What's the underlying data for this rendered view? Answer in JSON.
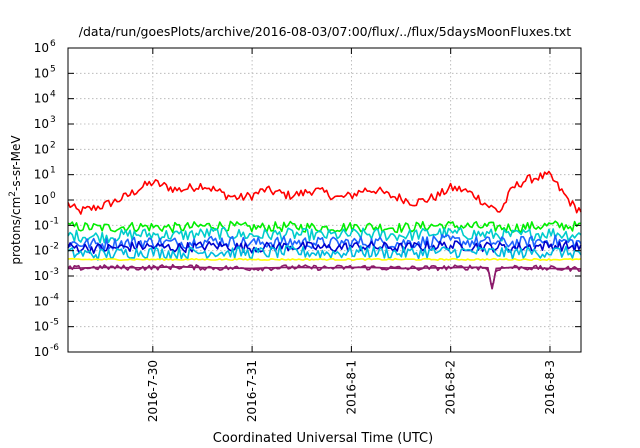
{
  "chart_data": {
    "type": "line",
    "title": "/data/run/goesPlots/archive/2016-08-03/07:00/flux/../flux/5daysMoonFluxes.txt",
    "xlabel": "Coordinated Universal Time (UTC)",
    "ylabel": {
      "base": "protons/cm",
      "sup": "2",
      "rest": "-s-sr-MeV"
    },
    "y_scale": "log",
    "ylim": [
      1e-06,
      1000000.0
    ],
    "y_ticks": [
      {
        "value": 1e-06,
        "base": "10",
        "exp": "-6"
      },
      {
        "value": 1e-05,
        "base": "10",
        "exp": "-5"
      },
      {
        "value": 0.0001,
        "base": "10",
        "exp": "-4"
      },
      {
        "value": 0.001,
        "base": "10",
        "exp": "-3"
      },
      {
        "value": 0.01,
        "base": "10",
        "exp": "-2"
      },
      {
        "value": 0.1,
        "base": "10",
        "exp": "-1"
      },
      {
        "value": 1.0,
        "base": "10",
        "exp": "0"
      },
      {
        "value": 10.0,
        "base": "10",
        "exp": "1"
      },
      {
        "value": 100.0,
        "base": "10",
        "exp": "2"
      },
      {
        "value": 1000.0,
        "base": "10",
        "exp": "3"
      },
      {
        "value": 10000.0,
        "base": "10",
        "exp": "4"
      },
      {
        "value": 100000.0,
        "base": "10",
        "exp": "5"
      },
      {
        "value": 1000000.0,
        "base": "10",
        "exp": "6"
      }
    ],
    "x_range": [
      "2016-07-29T03:30",
      "2016-08-03T07:30"
    ],
    "x_ticks": [
      {
        "at": "2016-07-30T00:00",
        "label": "2016-7-30"
      },
      {
        "at": "2016-07-31T00:00",
        "label": "2016-7-31"
      },
      {
        "at": "2016-08-01T00:00",
        "label": "2016-8-1"
      },
      {
        "at": "2016-08-02T00:00",
        "label": "2016-8-2"
      },
      {
        "at": "2016-08-03T00:00",
        "label": "2016-8-3"
      }
    ],
    "grid": true,
    "legend": "none",
    "series": [
      {
        "color": "#ff0000",
        "x": [
          "2016-07-29T03:30",
          "2016-07-29T06:00",
          "2016-07-29T09:00",
          "2016-07-29T12:00",
          "2016-07-29T15:00",
          "2016-07-29T18:00",
          "2016-07-29T21:00",
          "2016-07-30T00:00",
          "2016-07-30T03:00",
          "2016-07-30T06:00",
          "2016-07-30T09:00",
          "2016-07-30T12:00",
          "2016-07-30T15:00",
          "2016-07-30T18:00",
          "2016-07-30T21:00",
          "2016-07-31T00:00",
          "2016-07-31T03:00",
          "2016-07-31T06:00",
          "2016-07-31T09:00",
          "2016-07-31T12:00",
          "2016-07-31T15:00",
          "2016-07-31T18:00",
          "2016-07-31T21:00",
          "2016-08-01T00:00",
          "2016-08-01T03:00",
          "2016-08-01T06:00",
          "2016-08-01T09:00",
          "2016-08-01T12:00",
          "2016-08-01T15:00",
          "2016-08-01T18:00",
          "2016-08-01T21:00",
          "2016-08-02T00:00",
          "2016-08-02T03:00",
          "2016-08-02T06:00",
          "2016-08-02T09:00",
          "2016-08-02T12:00",
          "2016-08-02T15:00",
          "2016-08-02T18:00",
          "2016-08-02T21:00",
          "2016-08-03T00:00",
          "2016-08-03T03:00",
          "2016-08-03T06:00",
          "2016-08-03T07:30"
        ],
        "y": [
          0.7,
          0.35,
          0.45,
          0.6,
          0.9,
          1.5,
          3,
          5,
          3.5,
          2.5,
          3,
          4,
          2.5,
          1.5,
          1.2,
          1.5,
          2.5,
          2,
          1.5,
          1.8,
          2.5,
          1.8,
          1.2,
          1.5,
          2.5,
          2.5,
          1.5,
          1.2,
          0.8,
          1.0,
          1.5,
          3,
          2.5,
          1.5,
          0.6,
          0.35,
          3,
          6,
          8,
          9,
          2,
          0.5,
          0.4
        ]
      },
      {
        "color": "#00ee00",
        "x": [
          "2016-07-29T03:30",
          "2016-07-29T12:00",
          "2016-07-29T21:00",
          "2016-07-30T06:00",
          "2016-07-30T15:00",
          "2016-07-31T00:00",
          "2016-07-31T09:00",
          "2016-07-31T18:00",
          "2016-08-01T03:00",
          "2016-08-01T12:00",
          "2016-08-01T21:00",
          "2016-08-02T06:00",
          "2016-08-02T15:00",
          "2016-08-03T00:00",
          "2016-08-03T07:30"
        ],
        "y": [
          0.09,
          0.08,
          0.09,
          0.08,
          0.1,
          0.08,
          0.09,
          0.08,
          0.09,
          0.08,
          0.1,
          0.09,
          0.08,
          0.1,
          0.09
        ]
      },
      {
        "color": "#00cccc",
        "x": [
          "2016-07-29T03:30",
          "2016-07-29T12:00",
          "2016-07-29T21:00",
          "2016-07-30T06:00",
          "2016-07-30T15:00",
          "2016-07-31T00:00",
          "2016-07-31T09:00",
          "2016-07-31T18:00",
          "2016-08-01T03:00",
          "2016-08-01T12:00",
          "2016-08-01T21:00",
          "2016-08-02T06:00",
          "2016-08-02T15:00",
          "2016-08-03T00:00",
          "2016-08-03T07:30"
        ],
        "y": [
          0.04,
          0.035,
          0.045,
          0.04,
          0.05,
          0.04,
          0.045,
          0.04,
          0.045,
          0.04,
          0.05,
          0.045,
          0.04,
          0.05,
          0.04
        ]
      },
      {
        "color": "#1e64ff",
        "x": [
          "2016-07-29T03:30",
          "2016-07-29T12:00",
          "2016-07-29T21:00",
          "2016-07-30T06:00",
          "2016-07-30T15:00",
          "2016-07-31T00:00",
          "2016-07-31T09:00",
          "2016-07-31T18:00",
          "2016-08-01T03:00",
          "2016-08-01T12:00",
          "2016-08-01T21:00",
          "2016-08-02T06:00",
          "2016-08-02T15:00",
          "2016-08-03T00:00",
          "2016-08-03T07:30"
        ],
        "y": [
          0.02,
          0.018,
          0.022,
          0.02,
          0.025,
          0.02,
          0.022,
          0.02,
          0.022,
          0.02,
          0.025,
          0.022,
          0.02,
          0.025,
          0.02
        ]
      },
      {
        "color": "#0000cc",
        "x": [
          "2016-07-29T03:30",
          "2016-07-29T12:00",
          "2016-07-29T21:00",
          "2016-07-30T06:00",
          "2016-07-30T15:00",
          "2016-07-31T00:00",
          "2016-07-31T09:00",
          "2016-07-31T18:00",
          "2016-08-01T03:00",
          "2016-08-01T12:00",
          "2016-08-01T21:00",
          "2016-08-02T06:00",
          "2016-08-02T15:00",
          "2016-08-03T00:00",
          "2016-08-03T07:30"
        ],
        "y": [
          0.014,
          0.012,
          0.015,
          0.013,
          0.016,
          0.013,
          0.015,
          0.013,
          0.015,
          0.013,
          0.016,
          0.015,
          0.013,
          0.016,
          0.014
        ]
      },
      {
        "color": "#00bbdd",
        "x": [
          "2016-07-29T03:30",
          "2016-07-29T12:00",
          "2016-07-29T21:00",
          "2016-07-30T06:00",
          "2016-07-30T15:00",
          "2016-07-31T00:00",
          "2016-07-31T09:00",
          "2016-07-31T18:00",
          "2016-08-01T03:00",
          "2016-08-01T12:00",
          "2016-08-01T21:00",
          "2016-08-02T06:00",
          "2016-08-02T15:00",
          "2016-08-03T00:00",
          "2016-08-03T07:30"
        ],
        "y": [
          0.008,
          0.007,
          0.009,
          0.008,
          0.009,
          0.008,
          0.009,
          0.008,
          0.009,
          0.008,
          0.009,
          0.009,
          0.008,
          0.009,
          0.008
        ]
      },
      {
        "color": "#ffff00",
        "x": [
          "2016-07-29T03:30",
          "2016-07-29T12:00",
          "2016-07-29T21:00",
          "2016-07-30T06:00",
          "2016-07-30T15:00",
          "2016-07-31T00:00",
          "2016-07-31T09:00",
          "2016-07-31T18:00",
          "2016-08-01T03:00",
          "2016-08-01T12:00",
          "2016-08-01T21:00",
          "2016-08-02T06:00",
          "2016-08-02T15:00",
          "2016-08-03T00:00",
          "2016-08-03T07:30"
        ],
        "y": [
          0.0045,
          0.0045,
          0.0045,
          0.0045,
          0.0045,
          0.0045,
          0.0045,
          0.0045,
          0.0045,
          0.0045,
          0.0045,
          0.0045,
          0.0045,
          0.0045,
          0.0045
        ]
      },
      {
        "color": "#8b1a6b",
        "x": [
          "2016-07-29T03:30",
          "2016-07-29T12:00",
          "2016-07-29T21:00",
          "2016-07-30T06:00",
          "2016-07-30T15:00",
          "2016-07-31T00:00",
          "2016-07-31T09:00",
          "2016-07-31T18:00",
          "2016-08-01T03:00",
          "2016-08-01T12:00",
          "2016-08-01T21:00",
          "2016-08-02T06:00",
          "2016-08-02T09:00",
          "2016-08-02T10:00",
          "2016-08-02T11:00",
          "2016-08-02T15:00",
          "2016-08-03T00:00",
          "2016-08-03T07:30"
        ],
        "y": [
          0.002,
          0.0022,
          0.0021,
          0.0023,
          0.0021,
          0.002,
          0.0022,
          0.0021,
          0.0022,
          0.002,
          0.0021,
          0.0022,
          0.0021,
          0.0003,
          0.002,
          0.0022,
          0.002,
          0.0019
        ]
      }
    ]
  }
}
